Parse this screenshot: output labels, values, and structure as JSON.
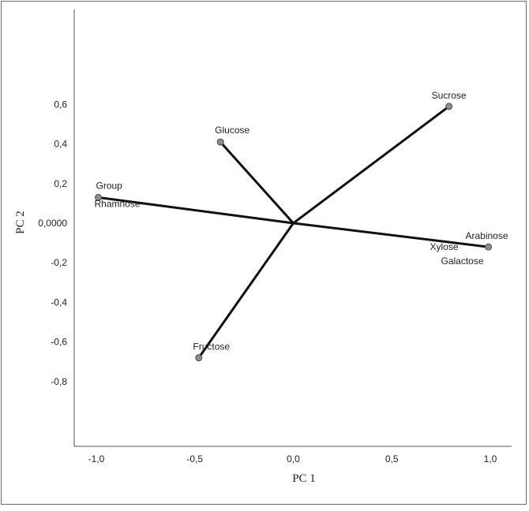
{
  "chart_data": {
    "type": "scatter",
    "title": "",
    "xlabel": "PC 1",
    "ylabel": "PC 2",
    "xlim": [
      -1.1,
      1.1
    ],
    "ylim": [
      -1.1,
      1.0
    ],
    "x_ticks": [
      {
        "value": -1.0,
        "label": "-1,0"
      },
      {
        "value": -0.5,
        "label": "-0,5"
      },
      {
        "value": 0.0,
        "label": "0,0"
      },
      {
        "value": 0.5,
        "label": "0,5"
      },
      {
        "value": 1.0,
        "label": "1,0"
      }
    ],
    "y_ticks": [
      {
        "value": 0.6,
        "label": "0,6"
      },
      {
        "value": 0.4,
        "label": "0,4"
      },
      {
        "value": 0.2,
        "label": "0,2"
      },
      {
        "value": 0.0,
        "label": "0,0000"
      },
      {
        "value": -0.2,
        "label": "-0,2"
      },
      {
        "value": -0.4,
        "label": "-0,4"
      },
      {
        "value": -0.6,
        "label": "-0,6"
      },
      {
        "value": -0.8,
        "label": "-0,8"
      }
    ],
    "grid": false,
    "points": [
      {
        "name": "Sucrose",
        "x": 0.79,
        "y": 0.59,
        "marker": true
      },
      {
        "name": "Glucose",
        "x": -0.37,
        "y": 0.41,
        "marker": true
      },
      {
        "name": "Group",
        "x": -0.99,
        "y": 0.13,
        "marker": true
      },
      {
        "name": "Rhamnose",
        "x": -0.99,
        "y": 0.13,
        "marker": false
      },
      {
        "name": "Arabinose",
        "x": 0.99,
        "y": -0.12,
        "marker": true
      },
      {
        "name": "Xylose",
        "x": 0.99,
        "y": -0.12,
        "marker": false
      },
      {
        "name": "Galactose",
        "x": 0.99,
        "y": -0.12,
        "marker": false
      },
      {
        "name": "Fructose",
        "x": -0.48,
        "y": -0.68,
        "marker": true
      }
    ],
    "vectors_from_origin": [
      "Sucrose",
      "Glucose",
      "Group",
      "Arabinose",
      "Fructose"
    ],
    "colors": {
      "line": "#111111",
      "marker": "#8c8c8c",
      "axis": "#555555",
      "text": "#222222"
    }
  }
}
